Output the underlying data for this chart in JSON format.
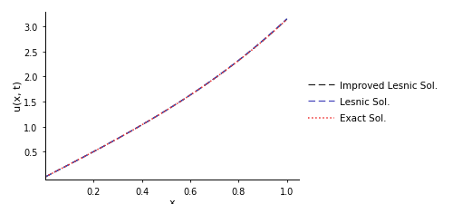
{
  "title": "",
  "xlabel": "x",
  "ylabel": "u(x, t)",
  "xlim": [
    0,
    1.05
  ],
  "ylim": [
    -0.05,
    3.3
  ],
  "x_ticks": [
    0.2,
    0.4,
    0.6,
    0.8,
    1.0
  ],
  "y_ticks": [
    0.5,
    1.0,
    1.5,
    2.0,
    2.5,
    3.0
  ],
  "n_points": 300,
  "exact_color": "#ee3333",
  "lesnic_color": "#4444bb",
  "improved_color": "#222222",
  "exact_label": "Exact Sol.",
  "lesnic_label": "Lesnic Sol.",
  "improved_label": "Improved Lesnic Sol.",
  "legend_fontsize": 7.5,
  "axis_label_fontsize": 8,
  "tick_fontsize": 7,
  "background_color": "#ffffff"
}
